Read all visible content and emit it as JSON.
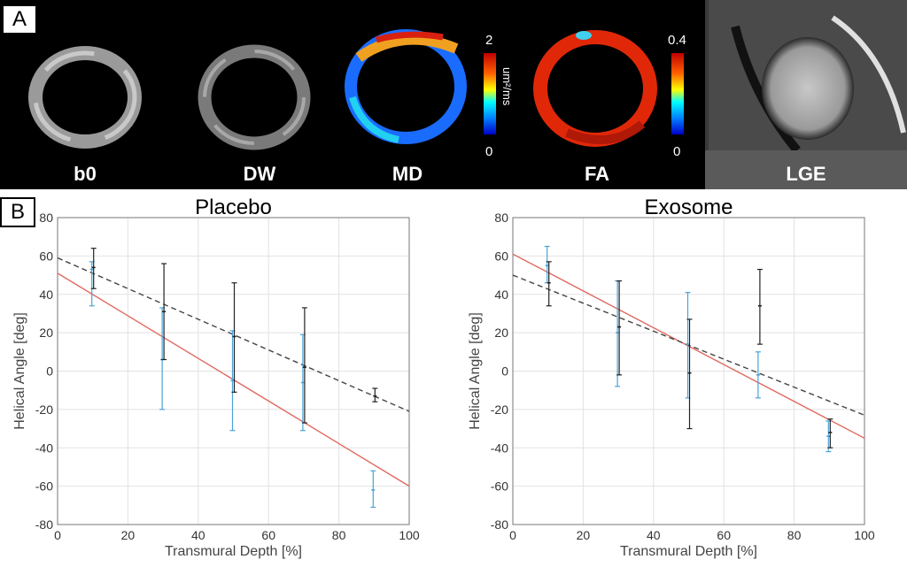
{
  "panel_a": {
    "label": "A",
    "images": [
      {
        "label": "b0"
      },
      {
        "label": "DW"
      },
      {
        "label": "MD",
        "colorbar": {
          "max": "2",
          "min": "0",
          "unit": "um²/ms"
        }
      },
      {
        "label": "FA",
        "colorbar": {
          "max": "0.4",
          "min": "0"
        }
      },
      {
        "label": "LGE"
      }
    ]
  },
  "panel_b": {
    "label": "B"
  },
  "colors": {
    "fit_red": "#e06b63",
    "fit_dash": "#444444",
    "err_blue": "#4aa3d8",
    "err_black": "#222222"
  },
  "chart_data": [
    {
      "type": "line",
      "title": "Placebo",
      "xlabel": "Transmural Depth [%]",
      "ylabel": "Helical Angle [deg]",
      "xlim": [
        0,
        100
      ],
      "ylim": [
        -80,
        80
      ],
      "xticks": [
        0,
        20,
        40,
        60,
        80,
        100
      ],
      "yticks": [
        -80,
        -60,
        -40,
        -20,
        0,
        20,
        40,
        60,
        80
      ],
      "grid": true,
      "fit_lines": [
        {
          "name": "red-fit",
          "style": "solid",
          "x": [
            0,
            100
          ],
          "y": [
            51,
            -60
          ]
        },
        {
          "name": "black-fit",
          "style": "dashed",
          "x": [
            0,
            100
          ],
          "y": [
            59,
            -21
          ]
        }
      ],
      "errorbars": [
        {
          "name": "blue",
          "points": [
            {
              "x": 10,
              "y": 53,
              "low": 34,
              "high": 57
            },
            {
              "x": 30,
              "y": 6,
              "low": -20,
              "high": 33
            },
            {
              "x": 50,
              "y": -5,
              "low": -31,
              "high": 21
            },
            {
              "x": 70,
              "y": -6,
              "low": -31,
              "high": 19
            },
            {
              "x": 90,
              "y": -62,
              "low": -71,
              "high": -52
            }
          ]
        },
        {
          "name": "black",
          "points": [
            {
              "x": 10,
              "y": 54,
              "low": 43,
              "high": 64
            },
            {
              "x": 30,
              "y": 31,
              "low": 6,
              "high": 56
            },
            {
              "x": 50,
              "y": 18,
              "low": -11,
              "high": 46
            },
            {
              "x": 70,
              "y": 2,
              "low": -27,
              "high": 33
            },
            {
              "x": 90,
              "y": -13,
              "low": -16,
              "high": -9
            }
          ]
        }
      ]
    },
    {
      "type": "line",
      "title": "Exosome",
      "xlabel": "Transmural Depth [%]",
      "ylabel": "Helical Angle [deg]",
      "xlim": [
        0,
        100
      ],
      "ylim": [
        -80,
        80
      ],
      "xticks": [
        0,
        20,
        40,
        60,
        80,
        100
      ],
      "yticks": [
        -80,
        -60,
        -40,
        -20,
        0,
        20,
        40,
        60,
        80
      ],
      "grid": true,
      "fit_lines": [
        {
          "name": "red-fit",
          "style": "solid",
          "x": [
            0,
            100
          ],
          "y": [
            61,
            -35
          ]
        },
        {
          "name": "black-fit",
          "style": "dashed",
          "x": [
            0,
            100
          ],
          "y": [
            50,
            -23
          ]
        }
      ],
      "errorbars": [
        {
          "name": "blue",
          "points": [
            {
              "x": 10,
              "y": 55,
              "low": 46,
              "high": 65
            },
            {
              "x": 30,
              "y": 20,
              "low": -8,
              "high": 47
            },
            {
              "x": 50,
              "y": 14,
              "low": -14,
              "high": 41
            },
            {
              "x": 70,
              "y": -2,
              "low": -14,
              "high": 10
            },
            {
              "x": 90,
              "y": -34,
              "low": -42,
              "high": -26
            }
          ]
        },
        {
          "name": "black",
          "points": [
            {
              "x": 10,
              "y": 46,
              "low": 34,
              "high": 57
            },
            {
              "x": 30,
              "y": 23,
              "low": -2,
              "high": 47
            },
            {
              "x": 50,
              "y": -1,
              "low": -30,
              "high": 27
            },
            {
              "x": 70,
              "y": 34,
              "low": 14,
              "high": 53
            },
            {
              "x": 90,
              "y": -32,
              "low": -40,
              "high": -25
            }
          ]
        }
      ]
    }
  ]
}
